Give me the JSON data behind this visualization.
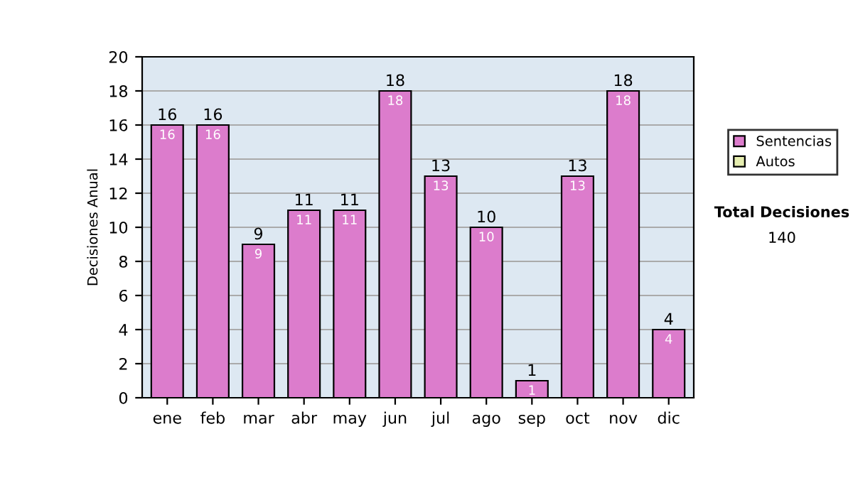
{
  "chart_data": {
    "type": "bar",
    "ylabel": "Decisiones Anual",
    "categories": [
      "ene",
      "feb",
      "mar",
      "abr",
      "may",
      "jun",
      "jul",
      "ago",
      "sep",
      "oct",
      "nov",
      "dic"
    ],
    "series": [
      {
        "name": "Sentencias",
        "color": "#dc7ccc",
        "values": [
          16,
          16,
          9,
          11,
          11,
          18,
          13,
          10,
          1,
          13,
          18,
          4
        ]
      },
      {
        "name": "Autos",
        "color": "#e6eeb0",
        "values": [
          null,
          null,
          null,
          null,
          null,
          null,
          null,
          null,
          null,
          null,
          null,
          null
        ]
      }
    ],
    "stacked": true,
    "data_labels": true,
    "totals": [
      "16",
      "16",
      "9",
      "11",
      "11",
      "18",
      "13",
      "10",
      "1",
      "13",
      "18",
      "4"
    ],
    "ylim": [
      0,
      20
    ],
    "yticks": [
      0,
      2,
      4,
      6,
      8,
      10,
      12,
      14,
      16,
      18,
      20
    ],
    "grid": "y",
    "legend": "right",
    "annotations": [
      "Total Decisiones",
      "140"
    ]
  }
}
